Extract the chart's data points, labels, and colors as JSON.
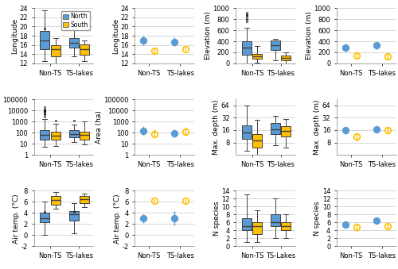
{
  "north_color": "#5B9BD5",
  "south_color": "#FFC000",
  "box_linecolor": "#404040",
  "grid_color": "#C8C8C8",
  "fig_bgcolor": "#FFFFFF",
  "longitude": {
    "ylabel": "Longitude",
    "ylim": [
      12,
      24
    ],
    "yticks": [
      12,
      14,
      16,
      18,
      20,
      22,
      24
    ],
    "north_nonTS": {
      "q1": 15.0,
      "median": 17.0,
      "q3": 19.0,
      "whislo": 12.5,
      "whishi": 23.5,
      "fliers": [
        19.5
      ]
    },
    "south_nonTS": {
      "q1": 13.5,
      "median": 15.0,
      "q3": 16.0,
      "whislo": 12.0,
      "whishi": 17.5,
      "fliers": []
    },
    "north_TS": {
      "q1": 15.5,
      "median": 16.5,
      "q3": 17.5,
      "whislo": 13.5,
      "whishi": 20.0,
      "fliers": []
    },
    "south_TS": {
      "q1": 13.8,
      "median": 15.0,
      "q3": 16.2,
      "whislo": 12.5,
      "whishi": 17.0,
      "fliers": []
    },
    "mean_north_nonTS": 17.0,
    "ci_north_nonTS": [
      16.0,
      18.0
    ],
    "mean_south_nonTS": 14.8,
    "ci_south_nonTS": [
      14.2,
      15.4
    ],
    "mean_north_TS": 16.7,
    "ci_north_TS": [
      15.8,
      17.6
    ],
    "mean_south_TS": 15.1,
    "ci_south_TS": [
      14.7,
      15.5
    ]
  },
  "elevation": {
    "ylabel": "Elevation (m)",
    "ylim": [
      0,
      1000
    ],
    "yticks": [
      0,
      200,
      400,
      600,
      800,
      1000
    ],
    "north_nonTS": {
      "q1": 150,
      "median": 280,
      "q3": 400,
      "whislo": 0,
      "whishi": 640,
      "fliers": [
        760,
        790,
        810,
        840,
        870,
        890,
        910
      ]
    },
    "south_nonTS": {
      "q1": 80,
      "median": 135,
      "q3": 175,
      "whislo": 10,
      "whishi": 320,
      "fliers": []
    },
    "north_TS": {
      "q1": 245,
      "median": 330,
      "q3": 410,
      "whislo": 60,
      "whishi": 440,
      "fliers": []
    },
    "south_TS": {
      "q1": 55,
      "median": 100,
      "q3": 145,
      "whislo": 5,
      "whishi": 200,
      "fliers": []
    },
    "mean_north_nonTS": 290,
    "ci_north_nonTS": [
      220,
      360
    ],
    "mean_south_nonTS": 148,
    "ci_south_nonTS": [
      95,
      200
    ],
    "mean_north_TS": 325,
    "ci_north_TS": [
      260,
      390
    ],
    "mean_south_TS": 128,
    "ci_south_TS": [
      75,
      180
    ]
  },
  "area": {
    "ylabel": "Area (ha)",
    "ylim_log": [
      1,
      100000
    ],
    "yticks_log": [
      1,
      10,
      100,
      1000,
      10000,
      100000
    ],
    "north_nonTS": {
      "q1": 25,
      "median": 60,
      "q3": 160,
      "whislo": 5,
      "whishi": 1600,
      "fliers": [
        3000,
        4500,
        5500,
        7000,
        8500,
        10000,
        13000,
        20000
      ]
    },
    "south_nonTS": {
      "q1": 22,
      "median": 55,
      "q3": 130,
      "whislo": 6,
      "whishi": 600,
      "fliers": [
        1200
      ]
    },
    "north_TS": {
      "q1": 40,
      "median": 80,
      "q3": 160,
      "whislo": 15,
      "whishi": 500,
      "fliers": [
        1200
      ]
    },
    "south_TS": {
      "q1": 25,
      "median": 60,
      "q3": 120,
      "whislo": 8,
      "whishi": 1000,
      "fliers": []
    },
    "mean_north_nonTS": 150,
    "ci_north_nonTS": [
      60,
      400
    ],
    "mean_south_nonTS": 80,
    "ci_south_nonTS": [
      30,
      200
    ],
    "mean_north_TS": 90,
    "ci_north_TS": [
      40,
      200
    ],
    "mean_south_TS": 130,
    "ci_south_TS": [
      50,
      350
    ]
  },
  "maxdepth": {
    "ylabel": "Max. depth (m)",
    "ylim_log": [
      4,
      90
    ],
    "yticks_log": [
      8,
      16,
      32,
      64
    ],
    "north_nonTS": {
      "q1": 10,
      "median": 14,
      "q3": 21,
      "whislo": 5,
      "whishi": 64,
      "fliers": []
    },
    "south_nonTS": {
      "q1": 6,
      "median": 9,
      "q3": 13,
      "whislo": 4,
      "whishi": 28,
      "fliers": []
    },
    "north_TS": {
      "q1": 13,
      "median": 17,
      "q3": 24,
      "whislo": 7,
      "whishi": 36,
      "fliers": []
    },
    "south_TS": {
      "q1": 11,
      "median": 15,
      "q3": 20,
      "whislo": 6,
      "whishi": 30,
      "fliers": []
    },
    "mean_north_nonTS": 16,
    "ci_north_nonTS": [
      13,
      19
    ],
    "mean_south_nonTS": 11,
    "ci_south_nonTS": [
      8.5,
      13.5
    ],
    "mean_north_TS": 17,
    "ci_north_TS": [
      14,
      20
    ],
    "mean_south_TS": 16,
    "ci_south_TS": [
      13,
      19
    ]
  },
  "airtemp": {
    "ylabel": "Air temp. (°C)",
    "ylim": [
      -2,
      8
    ],
    "yticks": [
      -2,
      0,
      2,
      4,
      6,
      8
    ],
    "north_nonTS": {
      "q1": 2.3,
      "median": 3.1,
      "q3": 4.0,
      "whislo": 0.0,
      "whishi": 6.0,
      "fliers": [
        4.2
      ]
    },
    "south_nonTS": {
      "q1": 5.5,
      "median": 6.4,
      "q3": 7.0,
      "whislo": 4.8,
      "whishi": 7.8,
      "fliers": []
    },
    "north_TS": {
      "q1": 2.6,
      "median": 3.7,
      "q3": 4.4,
      "whislo": 0.3,
      "whishi": 5.8,
      "fliers": [
        4.2
      ]
    },
    "south_TS": {
      "q1": 5.8,
      "median": 6.5,
      "q3": 7.1,
      "whislo": 5.0,
      "whishi": 7.5,
      "fliers": []
    },
    "mean_north_nonTS": 3.0,
    "ci_north_nonTS": [
      2.2,
      3.8
    ],
    "mean_south_nonTS": 6.2,
    "ci_south_nonTS": [
      5.9,
      6.5
    ],
    "mean_north_TS": 3.0,
    "ci_north_TS": [
      1.7,
      4.3
    ],
    "mean_south_TS": 6.2,
    "ci_south_TS": [
      5.9,
      6.5
    ]
  },
  "nspecies": {
    "ylabel": "N species",
    "ylim": [
      0,
      14
    ],
    "yticks": [
      0,
      2,
      4,
      6,
      8,
      10,
      12,
      14
    ],
    "north_nonTS": {
      "q1": 4,
      "median": 5,
      "q3": 7,
      "whislo": 1,
      "whishi": 13,
      "fliers": []
    },
    "south_nonTS": {
      "q1": 3,
      "median": 5,
      "q3": 6,
      "whislo": 1,
      "whishi": 9,
      "fliers": []
    },
    "north_TS": {
      "q1": 5,
      "median": 6,
      "q3": 8,
      "whislo": 2,
      "whishi": 12,
      "fliers": []
    },
    "south_TS": {
      "q1": 4,
      "median": 5,
      "q3": 6,
      "whislo": 2,
      "whishi": 8,
      "fliers": []
    },
    "mean_north_nonTS": 5.5,
    "ci_north_nonTS": [
      4.8,
      6.2
    ],
    "mean_south_nonTS": 4.8,
    "ci_south_nonTS": [
      3.8,
      5.8
    ],
    "mean_north_TS": 6.5,
    "ci_north_TS": [
      5.8,
      7.2
    ],
    "mean_south_TS": 5.0,
    "ci_south_TS": [
      4.2,
      5.8
    ]
  },
  "xticklabels_box": [
    "Non-TS",
    "TS-lakes"
  ],
  "xticklabels_ci": [
    "Non-TS",
    "TS-lakes"
  ],
  "xticklabels_nspecies_box": [
    "Non-TS",
    "TS-Lakes"
  ],
  "legend_labels": [
    "North",
    "South"
  ]
}
